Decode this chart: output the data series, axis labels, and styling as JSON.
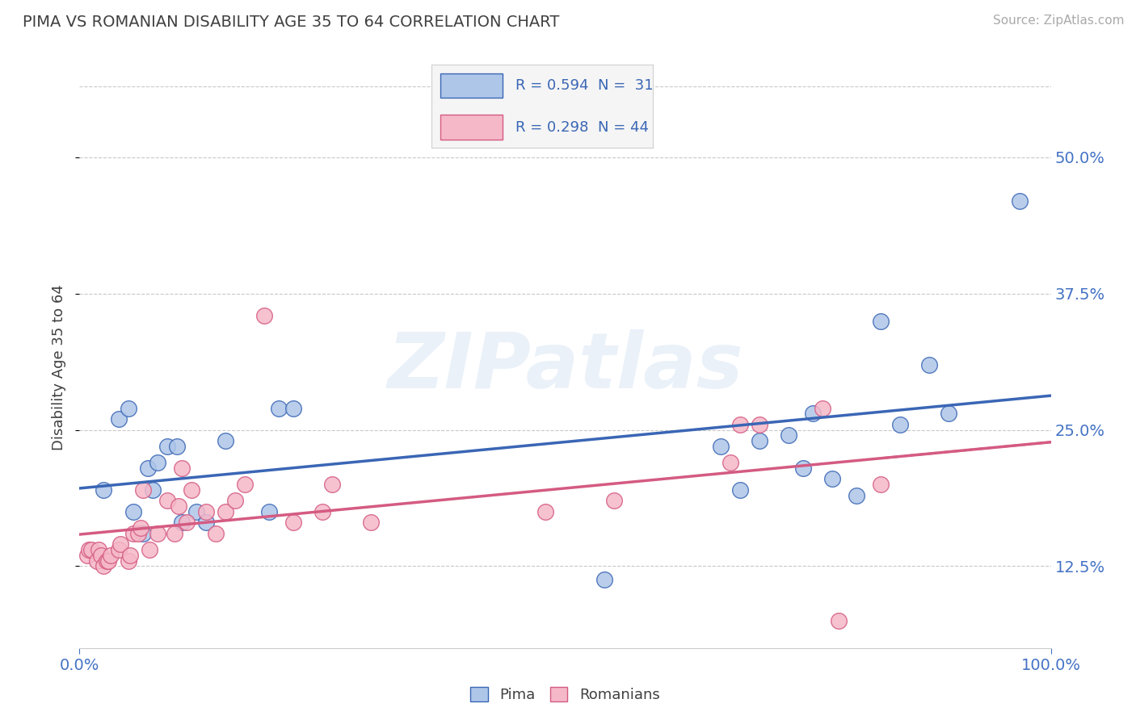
{
  "title": "PIMA VS ROMANIAN DISABILITY AGE 35 TO 64 CORRELATION CHART",
  "source": "Source: ZipAtlas.com",
  "ylabel": "Disability Age 35 to 64",
  "xlim": [
    0.0,
    1.0
  ],
  "ylim": [
    0.05,
    0.565
  ],
  "yticks": [
    0.125,
    0.25,
    0.375,
    0.5
  ],
  "ytick_labels": [
    "12.5%",
    "25.0%",
    "37.5%",
    "50.0%"
  ],
  "xticks": [
    0.0,
    1.0
  ],
  "xtick_labels": [
    "0.0%",
    "100.0%"
  ],
  "legend_r1": "R = 0.594",
  "legend_n1": "N =  31",
  "legend_r2": "R = 0.298",
  "legend_n2": "N = 44",
  "pima_color": "#aec6e8",
  "romanian_color": "#f5b8c8",
  "pima_line_color": "#3a66b5",
  "romanian_line_color": "#d45b82",
  "watermark_text": "ZIPatlas",
  "pima_x": [
    0.025,
    0.04,
    0.05,
    0.055,
    0.065,
    0.07,
    0.075,
    0.08,
    0.09,
    0.1,
    0.105,
    0.12,
    0.13,
    0.15,
    0.195,
    0.205,
    0.22,
    0.54,
    0.66,
    0.68,
    0.7,
    0.73,
    0.745,
    0.755,
    0.775,
    0.8,
    0.825,
    0.845,
    0.875,
    0.895,
    0.968
  ],
  "pima_y": [
    0.195,
    0.26,
    0.27,
    0.175,
    0.155,
    0.215,
    0.195,
    0.22,
    0.235,
    0.235,
    0.165,
    0.175,
    0.165,
    0.24,
    0.175,
    0.27,
    0.27,
    0.113,
    0.235,
    0.195,
    0.24,
    0.245,
    0.215,
    0.265,
    0.205,
    0.19,
    0.35,
    0.255,
    0.31,
    0.265,
    0.46
  ],
  "romanian_x": [
    0.008,
    0.01,
    0.012,
    0.018,
    0.02,
    0.022,
    0.025,
    0.028,
    0.03,
    0.032,
    0.04,
    0.042,
    0.05,
    0.052,
    0.055,
    0.06,
    0.063,
    0.065,
    0.072,
    0.08,
    0.09,
    0.098,
    0.102,
    0.105,
    0.11,
    0.115,
    0.13,
    0.14,
    0.15,
    0.16,
    0.17,
    0.19,
    0.22,
    0.25,
    0.26,
    0.3,
    0.48,
    0.55,
    0.67,
    0.68,
    0.7,
    0.765,
    0.782,
    0.825
  ],
  "romanian_y": [
    0.135,
    0.14,
    0.14,
    0.13,
    0.14,
    0.135,
    0.125,
    0.13,
    0.13,
    0.135,
    0.14,
    0.145,
    0.13,
    0.135,
    0.155,
    0.155,
    0.16,
    0.195,
    0.14,
    0.155,
    0.185,
    0.155,
    0.18,
    0.215,
    0.165,
    0.195,
    0.175,
    0.155,
    0.175,
    0.185,
    0.2,
    0.355,
    0.165,
    0.175,
    0.2,
    0.165,
    0.175,
    0.185,
    0.22,
    0.255,
    0.255,
    0.27,
    0.075,
    0.2
  ],
  "bg_color": "#ffffff",
  "grid_color": "#c8c8c8",
  "title_color": "#404040",
  "axis_label_color": "#4472c4"
}
